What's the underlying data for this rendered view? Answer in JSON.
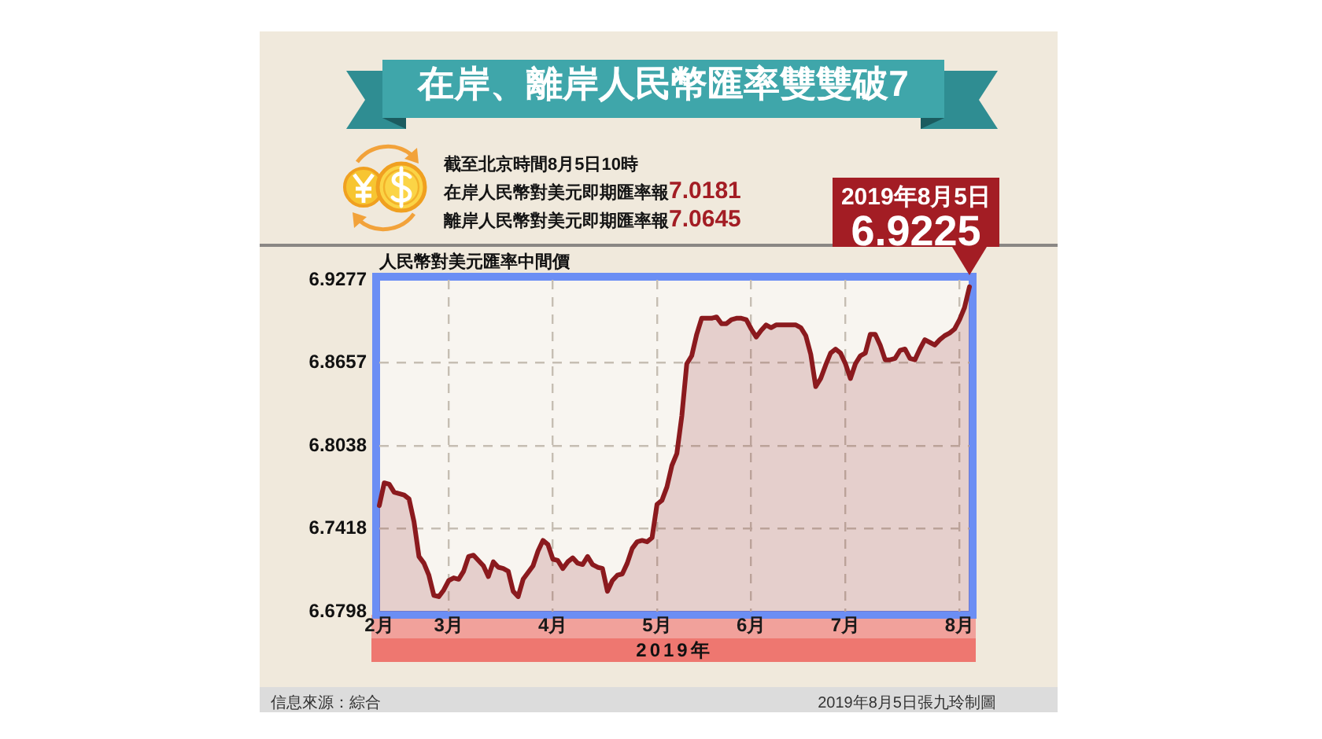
{
  "chart_data": {
    "type": "area",
    "title": "在岸、離岸人民幣匯率雙雙破7",
    "ylabel": "人民幣對美元匯率中間價",
    "xlabel": "2019年",
    "categories": [
      "2月",
      null,
      null,
      null,
      null,
      null,
      null,
      null,
      null,
      null,
      null,
      null,
      null,
      null,
      "3月",
      null,
      null,
      null,
      null,
      null,
      null,
      null,
      null,
      null,
      null,
      null,
      null,
      null,
      null,
      null,
      null,
      null,
      null,
      null,
      null,
      "4月",
      null,
      null,
      null,
      null,
      null,
      null,
      null,
      null,
      null,
      null,
      null,
      null,
      null,
      null,
      null,
      null,
      null,
      null,
      null,
      null,
      "5月",
      null,
      null,
      null,
      null,
      null,
      null,
      null,
      null,
      null,
      null,
      null,
      null,
      null,
      null,
      null,
      null,
      null,
      null,
      "6月",
      null,
      null,
      null,
      null,
      null,
      null,
      null,
      null,
      null,
      null,
      null,
      null,
      null,
      null,
      null,
      null,
      null,
      null,
      "7月",
      null,
      null,
      null,
      null,
      null,
      null,
      null,
      null,
      null,
      null,
      null,
      null,
      null,
      null,
      null,
      null,
      null,
      null,
      null,
      null,
      null,
      null,
      "8月",
      null,
      null
    ],
    "series": [
      {
        "color": "#8b1a1e",
        "values": [
          6.759,
          6.776,
          6.775,
          6.769,
          6.768,
          6.767,
          6.764,
          6.747,
          6.721,
          6.716,
          6.707,
          6.692,
          6.691,
          6.696,
          6.703,
          6.705,
          6.704,
          6.71,
          6.721,
          6.722,
          6.718,
          6.714,
          6.706,
          6.717,
          6.713,
          6.712,
          6.71,
          6.695,
          6.691,
          6.704,
          6.709,
          6.714,
          6.725,
          6.733,
          6.73,
          6.719,
          6.718,
          6.712,
          6.717,
          6.72,
          6.716,
          6.715,
          6.721,
          6.715,
          6.713,
          6.712,
          6.695,
          6.703,
          6.707,
          6.708,
          6.716,
          6.727,
          6.732,
          6.733,
          6.732,
          6.735,
          6.76,
          6.763,
          6.773,
          6.789,
          6.798,
          6.826,
          6.865,
          6.871,
          6.887,
          6.899,
          6.899,
          6.899,
          6.9,
          6.895,
          6.895,
          6.898,
          6.899,
          6.899,
          6.898,
          6.891,
          6.885,
          6.89,
          6.894,
          6.892,
          6.894,
          6.894,
          6.894,
          6.894,
          6.894,
          6.892,
          6.886,
          6.872,
          6.848,
          6.854,
          6.864,
          6.873,
          6.876,
          6.873,
          6.865,
          6.854,
          6.865,
          6.871,
          6.873,
          6.887,
          6.887,
          6.879,
          6.868,
          6.868,
          6.869,
          6.875,
          6.876,
          6.869,
          6.868,
          6.876,
          6.883,
          6.881,
          6.879,
          6.883,
          6.886,
          6.888,
          6.891,
          6.898,
          6.907,
          6.9225
        ],
        "value_labels": [
          null,
          null,
          null,
          null,
          null,
          null,
          null,
          null,
          null,
          null,
          null,
          null,
          null,
          null,
          null,
          null,
          null,
          null,
          null,
          null,
          null,
          null,
          null,
          null,
          null,
          null,
          null,
          null,
          null,
          null,
          null,
          null,
          null,
          null,
          null,
          null,
          null,
          null,
          null,
          null,
          null,
          null,
          null,
          null,
          null,
          null,
          null,
          null,
          null,
          null,
          null,
          null,
          null,
          null,
          null,
          null,
          null,
          null,
          null,
          null,
          null,
          null,
          null,
          null,
          null,
          null,
          null,
          null,
          null,
          null,
          null,
          null,
          null,
          null,
          null,
          null,
          null,
          null,
          null,
          null,
          null,
          null,
          null,
          null,
          null,
          null,
          null,
          null,
          null,
          null,
          null,
          null,
          null,
          null,
          null,
          null,
          null,
          null,
          null,
          null,
          null,
          null,
          null,
          null,
          null,
          null,
          null,
          null,
          null,
          null,
          null,
          null,
          null,
          null,
          null,
          null,
          null,
          null,
          null,
          "6.9225"
        ]
      }
    ],
    "ylim": [
      6.6798,
      6.9277
    ],
    "yticks": [
      6.6798,
      6.7418,
      6.8038,
      6.8657,
      6.9277
    ],
    "grid": true,
    "annotations": [
      "截至北京時間8月5日10時",
      "在岸人民幣對美元即期匯率報7.0181",
      "離岸人民幣對美元即期匯率報7.0645",
      "信息來源：綜合",
      "2019年8月5日張九玲制圖",
      "2019年8月5日"
    ]
  }
}
